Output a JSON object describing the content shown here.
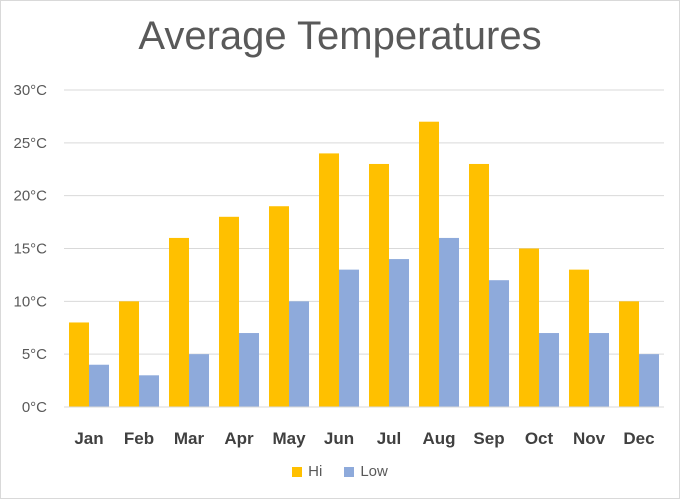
{
  "chart_data": {
    "type": "bar",
    "title": "Average Temperatures",
    "categories": [
      "Jan",
      "Feb",
      "Mar",
      "Apr",
      "May",
      "Jun",
      "Jul",
      "Aug",
      "Sep",
      "Oct",
      "Nov",
      "Dec"
    ],
    "series": [
      {
        "name": "Hi",
        "color": "#ffc000",
        "values": [
          8,
          10,
          16,
          18,
          19,
          24,
          23,
          27,
          23,
          15,
          13,
          10
        ]
      },
      {
        "name": "Low",
        "color": "#8eaadb",
        "values": [
          4,
          3,
          5,
          7,
          10,
          13,
          14,
          16,
          12,
          7,
          7,
          5
        ]
      }
    ],
    "y_ticks": [
      "0°C",
      "5°C",
      "10°C",
      "15°C",
      "20°C",
      "25°C",
      "30°C"
    ],
    "ylim": [
      0,
      30
    ],
    "grid": true,
    "legend_position": "bottom"
  }
}
